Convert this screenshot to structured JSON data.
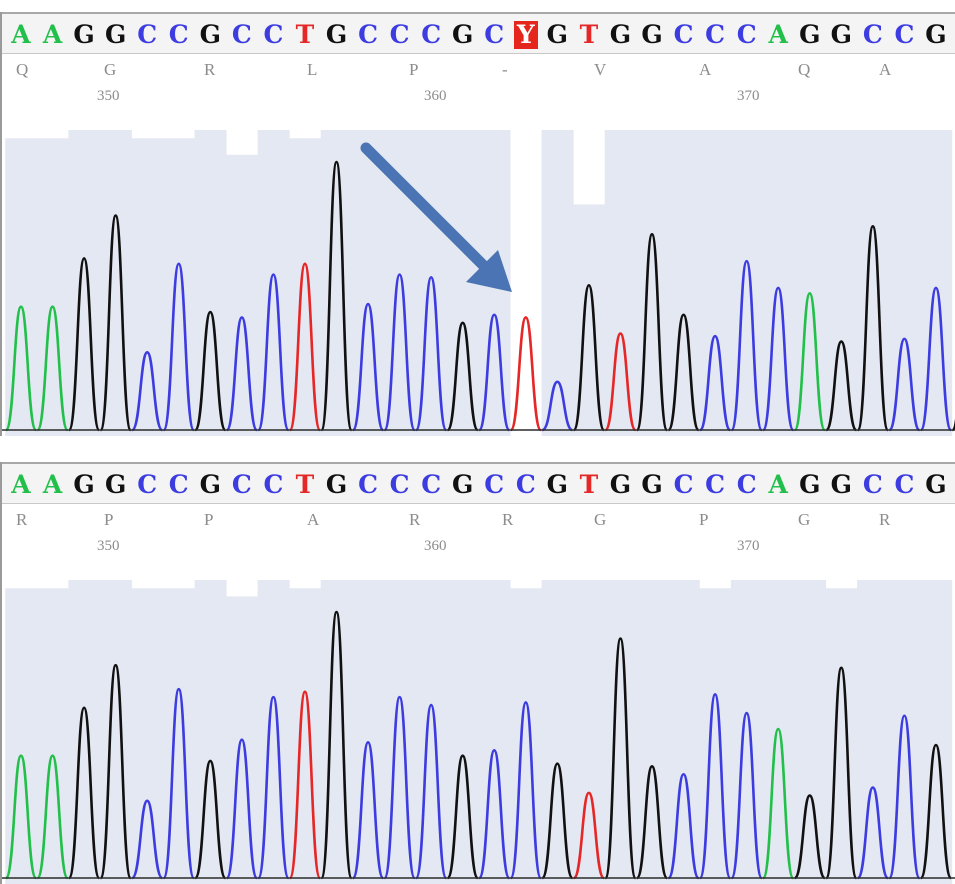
{
  "colors": {
    "A": "#22c04a",
    "C": "#3c3ce0",
    "G": "#111111",
    "T": "#e52727",
    "Y": "#ffffff",
    "qual": "#e4e8f2",
    "arrow": "#4a74b4"
  },
  "chart_data": [
    {
      "type": "line",
      "panel": "top",
      "sequence": [
        "A",
        "A",
        "G",
        "G",
        "C",
        "C",
        "G",
        "C",
        "C",
        "T",
        "G",
        "C",
        "C",
        "C",
        "G",
        "C",
        "Y",
        "G",
        "T",
        "G",
        "G",
        "C",
        "C",
        "C",
        "A",
        "G",
        "G",
        "C",
        "C",
        "G"
      ],
      "highlighted_index": 16,
      "amino_acids": [
        "Q",
        "G",
        "R",
        "L",
        "P",
        "-",
        "V",
        "A",
        "Q",
        "A"
      ],
      "positions": [
        "350",
        "360",
        "370"
      ],
      "quality_relative": [
        0.72,
        0.72,
        0.74,
        0.74,
        0.72,
        0.72,
        0.74,
        0.68,
        0.74,
        0.72,
        0.74,
        0.74,
        0.74,
        0.74,
        0.74,
        0.74,
        0.0,
        0.74,
        0.56,
        0.74,
        0.74,
        0.74,
        0.74,
        0.74,
        0.74,
        0.74,
        0.74,
        0.74,
        0.74,
        0.74
      ],
      "peaks": [
        {
          "base": "A",
          "height": 0.46
        },
        {
          "base": "A",
          "height": 0.46
        },
        {
          "base": "G",
          "height": 0.64
        },
        {
          "base": "G",
          "height": 0.8
        },
        {
          "base": "C",
          "height": 0.29
        },
        {
          "base": "C",
          "height": 0.62
        },
        {
          "base": "G",
          "height": 0.44
        },
        {
          "base": "C",
          "height": 0.42
        },
        {
          "base": "C",
          "height": 0.58
        },
        {
          "base": "T",
          "height": 0.62
        },
        {
          "base": "G",
          "height": 1.0
        },
        {
          "base": "C",
          "height": 0.47
        },
        {
          "base": "C",
          "height": 0.58
        },
        {
          "base": "C",
          "height": 0.57
        },
        {
          "base": "G",
          "height": 0.4
        },
        {
          "base": "C",
          "height": 0.43
        },
        {
          "base": "T",
          "height": 0.42
        },
        {
          "base": "C",
          "height": 0.18
        },
        {
          "base": "G",
          "height": 0.54
        },
        {
          "base": "T",
          "height": 0.36
        },
        {
          "base": "G",
          "height": 0.73
        },
        {
          "base": "G",
          "height": 0.43
        },
        {
          "base": "C",
          "height": 0.35
        },
        {
          "base": "C",
          "height": 0.63
        },
        {
          "base": "C",
          "height": 0.53
        },
        {
          "base": "A",
          "height": 0.51
        },
        {
          "base": "G",
          "height": 0.33
        },
        {
          "base": "G",
          "height": 0.76
        },
        {
          "base": "C",
          "height": 0.34
        },
        {
          "base": "C",
          "height": 0.53
        },
        {
          "base": "G",
          "height": 0.49
        }
      ]
    },
    {
      "type": "line",
      "panel": "bottom",
      "sequence": [
        "A",
        "A",
        "G",
        "G",
        "C",
        "C",
        "G",
        "C",
        "C",
        "T",
        "G",
        "C",
        "C",
        "C",
        "G",
        "C",
        "C",
        "G",
        "T",
        "G",
        "G",
        "C",
        "C",
        "C",
        "A",
        "G",
        "G",
        "C",
        "C",
        "G"
      ],
      "highlighted_index": null,
      "amino_acids": [
        "R",
        "P",
        "P",
        "A",
        "R",
        "R",
        "G",
        "P",
        "G",
        "R"
      ],
      "positions": [
        "350",
        "360",
        "370"
      ],
      "quality_relative": [
        0.72,
        0.72,
        0.74,
        0.74,
        0.72,
        0.72,
        0.74,
        0.7,
        0.74,
        0.72,
        0.74,
        0.74,
        0.74,
        0.74,
        0.74,
        0.74,
        0.72,
        0.74,
        0.74,
        0.74,
        0.74,
        0.74,
        0.72,
        0.74,
        0.74,
        0.74,
        0.72,
        0.74,
        0.74,
        0.74
      ],
      "peaks": [
        {
          "base": "A",
          "height": 0.46
        },
        {
          "base": "A",
          "height": 0.46
        },
        {
          "base": "G",
          "height": 0.64
        },
        {
          "base": "G",
          "height": 0.8
        },
        {
          "base": "C",
          "height": 0.29
        },
        {
          "base": "C",
          "height": 0.71
        },
        {
          "base": "G",
          "height": 0.44
        },
        {
          "base": "C",
          "height": 0.52
        },
        {
          "base": "C",
          "height": 0.68
        },
        {
          "base": "T",
          "height": 0.7
        },
        {
          "base": "G",
          "height": 1.0
        },
        {
          "base": "C",
          "height": 0.51
        },
        {
          "base": "C",
          "height": 0.68
        },
        {
          "base": "C",
          "height": 0.65
        },
        {
          "base": "G",
          "height": 0.46
        },
        {
          "base": "C",
          "height": 0.48
        },
        {
          "base": "C",
          "height": 0.66
        },
        {
          "base": "G",
          "height": 0.43
        },
        {
          "base": "T",
          "height": 0.32
        },
        {
          "base": "G",
          "height": 0.9
        },
        {
          "base": "G",
          "height": 0.42
        },
        {
          "base": "C",
          "height": 0.39
        },
        {
          "base": "C",
          "height": 0.69
        },
        {
          "base": "C",
          "height": 0.62
        },
        {
          "base": "A",
          "height": 0.56
        },
        {
          "base": "G",
          "height": 0.31
        },
        {
          "base": "G",
          "height": 0.79
        },
        {
          "base": "C",
          "height": 0.34
        },
        {
          "base": "C",
          "height": 0.61
        },
        {
          "base": "G",
          "height": 0.5
        }
      ]
    }
  ]
}
